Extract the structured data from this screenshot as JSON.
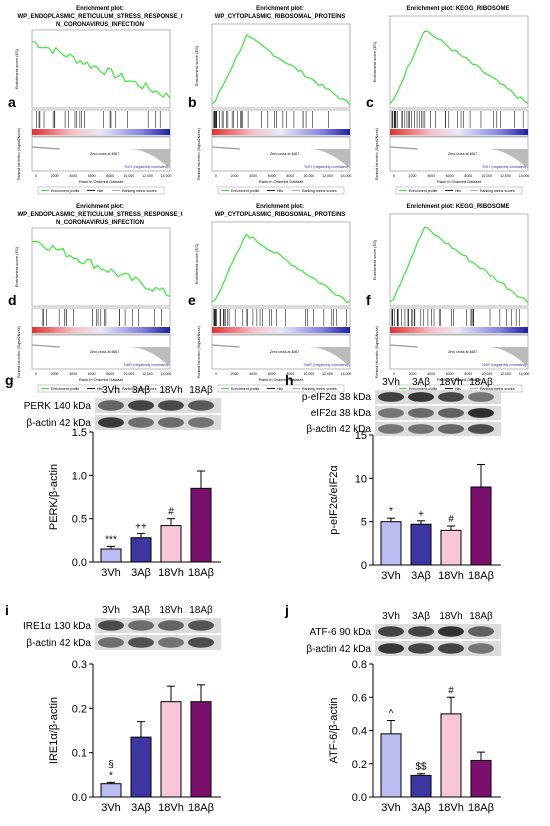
{
  "panel_letters": [
    "a",
    "b",
    "c",
    "d",
    "e",
    "f",
    "g",
    "h",
    "i",
    "j"
  ],
  "gsea": {
    "common": {
      "ylabel": "Enrichment score (ES)",
      "rank_ylabel": "Ranked list metric (Signal2Noise)",
      "xlabel": "Rank in Ordered Dataset",
      "xticks": [
        "0",
        "2000",
        "4000",
        "6000",
        "8000",
        "10,000",
        "12,000",
        "14,000"
      ],
      "zero_cross": "Zero cross at 4667",
      "legend": [
        "Enrichment profile",
        "Hits",
        "Ranking metric scores"
      ]
    },
    "panels": [
      {
        "letter": "a",
        "title1": "Enrichment plot:",
        "title2": "WP_ENDOPLASMIC_RETICULUM_STRESS_RESPONSE_I",
        "title3": "N_CORONAVIRUS_INFECTION",
        "pos_label": "'NAR' (positively correlated)",
        "neg_label": "'SVH' (negatively correlated)"
      },
      {
        "letter": "b",
        "title1": "Enrichment plot:",
        "title2": "WP_CYTOPLASMIC_RIBOSOMAL_PROTEINS",
        "title3": "",
        "pos_label": "'NAR' (positively correlated)",
        "neg_label": "'SVH' (negatively correlated)"
      },
      {
        "letter": "c",
        "title1": "Enrichment plot: KEGG_RIBOSOME",
        "title2": "",
        "title3": "",
        "pos_label": "'NAR' (positively correlated)",
        "neg_label": "'SVH' (negatively correlated)"
      },
      {
        "letter": "d",
        "title1": "Enrichment plot:",
        "title2": "WP_ENDOPLASMIC_RETICULUM_STRESS_RESPONSE_I",
        "title3": "N_CORONAVIRUS_INFECTION",
        "pos_label": "'NAR' (positively correlated)",
        "neg_label": "'NAR' (negatively correlated)"
      },
      {
        "letter": "e",
        "title1": "Enrichment plot:",
        "title2": "WP_CYTOPLASMIC_RIBOSOMAL_PROTEINS",
        "title3": "",
        "pos_label": "'NAR' (positively correlated)",
        "neg_label": "'NAR' (negatively correlated)"
      },
      {
        "letter": "f",
        "title1": "Enrichment plot: KEGG_RIBOSOME",
        "title2": "",
        "title3": "",
        "pos_label": "'NAR' (positively correlated)",
        "neg_label": "'NAR' (negatively correlated)"
      }
    ]
  },
  "western": {
    "groups": [
      "3Vh",
      "3Aβ",
      "18Vh",
      "18Aβ"
    ],
    "colors": [
      "#b9bdf2",
      "#3d36a0",
      "#f7c7d8",
      "#7b0f6e"
    ],
    "panels": [
      {
        "letter": "g",
        "blots": [
          "PERK 140 kDa",
          "β-actin 42 kDa"
        ],
        "ylabel": "PERK/β-actin",
        "yticks": [
          "0.0",
          "0.5",
          "1.0",
          "1.5"
        ],
        "ymax": 1.5,
        "values": [
          0.15,
          0.28,
          0.42,
          0.85
        ],
        "errors": [
          0.03,
          0.05,
          0.08,
          0.2
        ],
        "marks": [
          "***",
          "++",
          "#",
          ""
        ]
      },
      {
        "letter": "h",
        "blots": [
          "p-eIF2α 38 kDa",
          "eIF2α 38 kDa",
          "β-actin 42 kDa"
        ],
        "ylabel": "p-eIF2α/eIF2α",
        "yticks": [
          "0",
          "5",
          "10",
          "15"
        ],
        "ymax": 15,
        "values": [
          5.0,
          4.7,
          4.0,
          9.0
        ],
        "errors": [
          0.4,
          0.4,
          0.5,
          2.6
        ],
        "marks": [
          "*",
          "+",
          "#",
          ""
        ]
      },
      {
        "letter": "i",
        "blots": [
          "IRE1α 130 kDa",
          "β-actin 42 kDa"
        ],
        "ylabel": "IRE1α/β-actin",
        "yticks": [
          "0.0",
          "0.1",
          "0.2",
          "0.3"
        ],
        "ymax": 0.3,
        "values": [
          0.03,
          0.135,
          0.215,
          0.215
        ],
        "errors": [
          0.003,
          0.035,
          0.035,
          0.038
        ],
        "marks": [
          "§\n*",
          "",
          "",
          ""
        ]
      },
      {
        "letter": "j",
        "blots": [
          "ATF-6 90 kDa",
          "β-actin 42 kDa"
        ],
        "ylabel": "ATF-6/β-actin",
        "yticks": [
          "0.0",
          "0.2",
          "0.4",
          "0.6",
          "0.8"
        ],
        "ymax": 0.8,
        "values": [
          0.38,
          0.13,
          0.5,
          0.22
        ],
        "errors": [
          0.08,
          0.01,
          0.1,
          0.05
        ],
        "marks": [
          "^",
          "$$",
          "#",
          ""
        ]
      }
    ]
  }
}
